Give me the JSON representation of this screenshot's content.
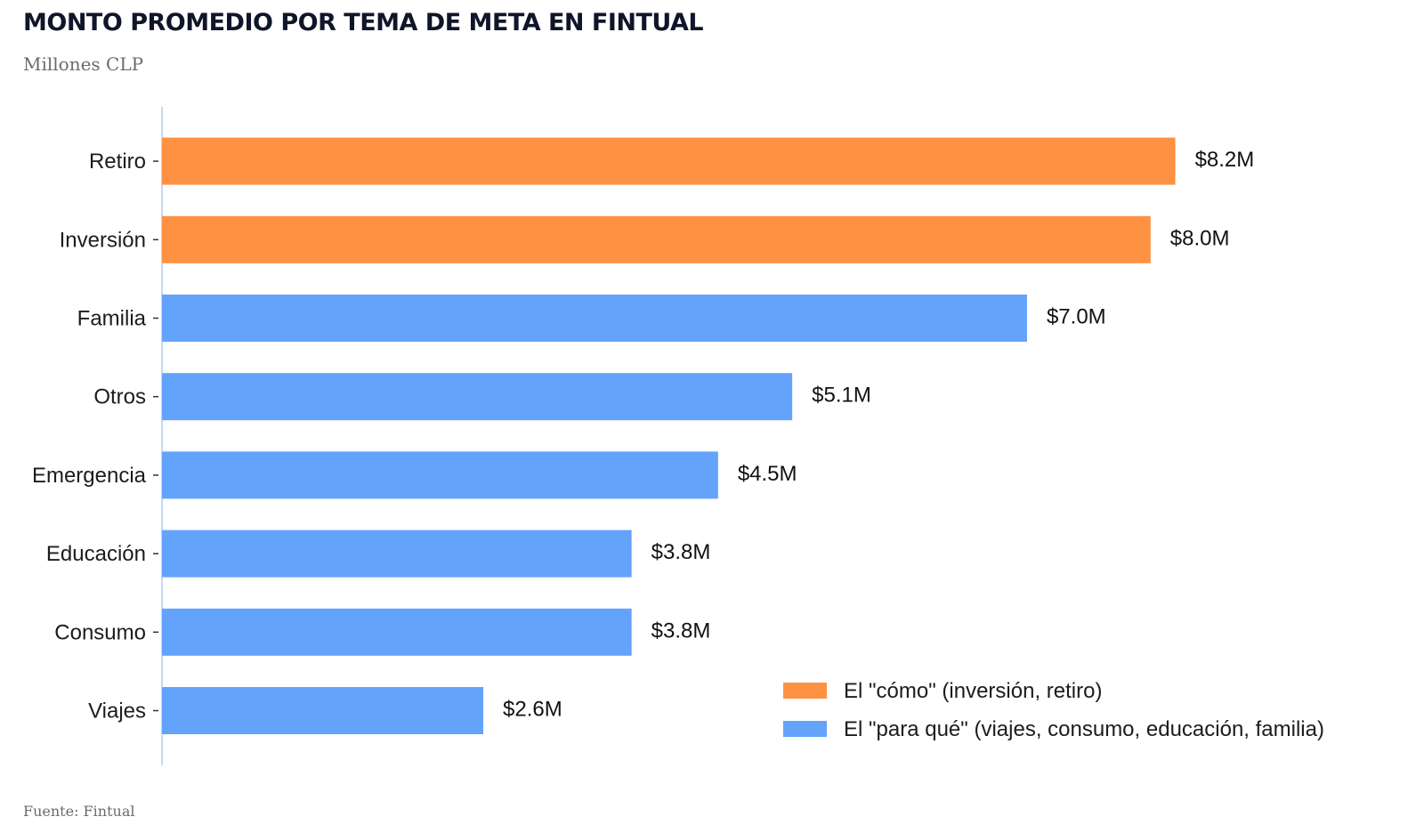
{
  "chart_data": {
    "type": "bar",
    "orientation": "horizontal",
    "title": "MONTO PROMEDIO POR TEMA DE META EN FINTUAL",
    "subtitle": "Millones CLP",
    "source": "Fuente: Fintual",
    "xlim": [
      0,
      8.7
    ],
    "categories": [
      "Retiro",
      "Inversión",
      "Familia",
      "Otros",
      "Emergencia",
      "Educación",
      "Consumo",
      "Viajes"
    ],
    "values": [
      8.2,
      8.0,
      7.0,
      5.1,
      4.5,
      3.8,
      3.8,
      2.6
    ],
    "value_labels": [
      "$8.2M",
      "$8.0M",
      "$7.0M",
      "$5.1M",
      "$4.5M",
      "$3.8M",
      "$3.8M",
      "$2.6M"
    ],
    "groups": [
      "como",
      "como",
      "para_que",
      "para_que",
      "para_que",
      "para_que",
      "para_que",
      "para_que"
    ],
    "legend": [
      {
        "key": "como",
        "label": "El \"cómo\" (inversión, retiro)",
        "color": "#FF9142"
      },
      {
        "key": "para_que",
        "label": "El \"para qué\" (viajes, consumo, educación, familia)",
        "color": "#63A3FC"
      }
    ],
    "legend_position": "bottom-right",
    "axis_color": "#c5d9f7"
  }
}
